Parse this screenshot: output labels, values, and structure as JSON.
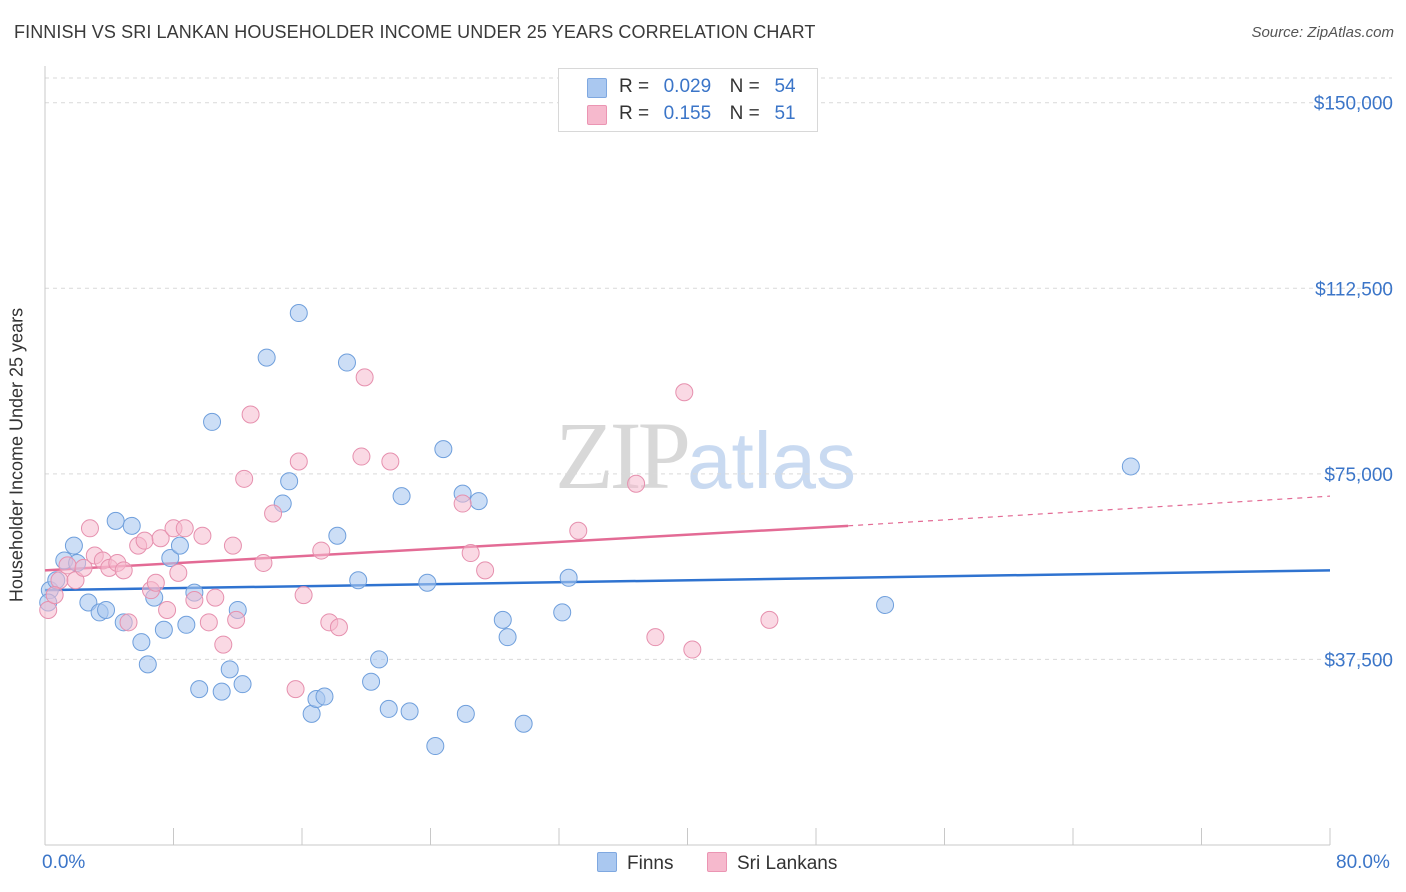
{
  "title": "FINNISH VS SRI LANKAN HOUSEHOLDER INCOME UNDER 25 YEARS CORRELATION CHART",
  "source": "Source: ZipAtlas.com",
  "watermark": {
    "zip": "ZIP",
    "atlas": "atlas"
  },
  "legend": {
    "r_label": "R =",
    "n_label": "N =",
    "rows": [
      {
        "r": "0.029",
        "n": "54"
      },
      {
        "r": "0.155",
        "n": "51"
      }
    ]
  },
  "colors": {
    "finns_fill": "#aac8f0",
    "finns_line": "#2f73d0",
    "srilankans_fill": "#f6b9cd",
    "srilankans_line": "#e36b95",
    "tick_text": "#3b75c8"
  },
  "chart_data": {
    "type": "scatter",
    "title": "FINNISH VS SRI LANKAN HOUSEHOLDER INCOME UNDER 25 YEARS CORRELATION CHART",
    "xlabel": "",
    "ylabel": "Householder Income Under 25 years",
    "xlim": [
      0,
      80
    ],
    "ylim": [
      0,
      155000
    ],
    "x_tick_labels": [
      "0.0%",
      "80.0%"
    ],
    "y_ticks": [
      37500,
      75000,
      112500,
      150000
    ],
    "y_tick_labels": [
      "$37,500",
      "$75,000",
      "$112,500",
      "$150,000"
    ],
    "grid": true,
    "legend_position": "top-center",
    "series": [
      {
        "name": "Finns",
        "r": 0.029,
        "n": 54,
        "trend": {
          "x": [
            0,
            80
          ],
          "y": [
            51500,
            55500
          ]
        },
        "points": [
          [
            0.3,
            51500
          ],
          [
            0.7,
            53500
          ],
          [
            1.2,
            57500
          ],
          [
            1.8,
            60500
          ],
          [
            2.0,
            57000
          ],
          [
            2.7,
            49000
          ],
          [
            3.4,
            47000
          ],
          [
            3.8,
            47500
          ],
          [
            4.4,
            65500
          ],
          [
            4.9,
            45000
          ],
          [
            5.4,
            64500
          ],
          [
            6.0,
            41000
          ],
          [
            6.4,
            36500
          ],
          [
            6.8,
            50000
          ],
          [
            7.4,
            43500
          ],
          [
            7.8,
            58000
          ],
          [
            8.4,
            60500
          ],
          [
            8.8,
            44500
          ],
          [
            9.3,
            51000
          ],
          [
            9.6,
            31500
          ],
          [
            10.4,
            85500
          ],
          [
            11.0,
            31000
          ],
          [
            11.5,
            35500
          ],
          [
            12.0,
            47500
          ],
          [
            12.3,
            32500
          ],
          [
            13.8,
            98500
          ],
          [
            14.8,
            69000
          ],
          [
            15.2,
            73500
          ],
          [
            15.8,
            107500
          ],
          [
            16.6,
            26500
          ],
          [
            16.9,
            29500
          ],
          [
            17.4,
            30000
          ],
          [
            18.2,
            62500
          ],
          [
            18.8,
            97500
          ],
          [
            19.5,
            53500
          ],
          [
            20.3,
            33000
          ],
          [
            20.8,
            37500
          ],
          [
            21.4,
            27500
          ],
          [
            22.2,
            70500
          ],
          [
            22.7,
            27000
          ],
          [
            23.8,
            53000
          ],
          [
            24.3,
            20000
          ],
          [
            24.8,
            80000
          ],
          [
            26.0,
            71000
          ],
          [
            26.2,
            26500
          ],
          [
            27.0,
            69500
          ],
          [
            28.5,
            45500
          ],
          [
            28.8,
            42000
          ],
          [
            29.8,
            24500
          ],
          [
            32.2,
            47000
          ],
          [
            32.6,
            54000
          ],
          [
            52.3,
            48500
          ],
          [
            67.6,
            76500
          ],
          [
            0.2,
            49000
          ]
        ]
      },
      {
        "name": "Sri Lankans",
        "r": 0.155,
        "n": 51,
        "trend": {
          "x": [
            0,
            50
          ],
          "y": [
            55500,
            64500
          ]
        },
        "trend_dashed": {
          "x": [
            50,
            80
          ],
          "y": [
            64500,
            70500
          ]
        },
        "points": [
          [
            0.2,
            47500
          ],
          [
            0.9,
            53500
          ],
          [
            1.4,
            56500
          ],
          [
            1.9,
            53500
          ],
          [
            2.4,
            56000
          ],
          [
            2.8,
            64000
          ],
          [
            3.1,
            58500
          ],
          [
            3.6,
            57500
          ],
          [
            4.0,
            56000
          ],
          [
            4.5,
            57000
          ],
          [
            4.9,
            55500
          ],
          [
            5.2,
            45000
          ],
          [
            5.8,
            60500
          ],
          [
            6.2,
            61500
          ],
          [
            6.6,
            51500
          ],
          [
            6.9,
            53000
          ],
          [
            7.2,
            62000
          ],
          [
            7.6,
            47500
          ],
          [
            8.0,
            64000
          ],
          [
            8.3,
            55000
          ],
          [
            8.7,
            64000
          ],
          [
            9.3,
            49500
          ],
          [
            9.8,
            62500
          ],
          [
            10.2,
            45000
          ],
          [
            10.6,
            50000
          ],
          [
            11.1,
            40500
          ],
          [
            11.7,
            60500
          ],
          [
            11.9,
            45500
          ],
          [
            12.4,
            74000
          ],
          [
            12.8,
            87000
          ],
          [
            13.6,
            57000
          ],
          [
            14.2,
            67000
          ],
          [
            15.6,
            31500
          ],
          [
            15.8,
            77500
          ],
          [
            16.1,
            50500
          ],
          [
            17.2,
            59500
          ],
          [
            17.7,
            45000
          ],
          [
            18.3,
            44000
          ],
          [
            19.7,
            78500
          ],
          [
            19.9,
            94500
          ],
          [
            21.5,
            77500
          ],
          [
            26.0,
            69000
          ],
          [
            26.5,
            59000
          ],
          [
            27.4,
            55500
          ],
          [
            33.2,
            63500
          ],
          [
            36.8,
            73000
          ],
          [
            38.0,
            42000
          ],
          [
            39.8,
            91500
          ],
          [
            40.3,
            39500
          ],
          [
            45.1,
            45500
          ],
          [
            0.6,
            50500
          ]
        ]
      }
    ]
  }
}
